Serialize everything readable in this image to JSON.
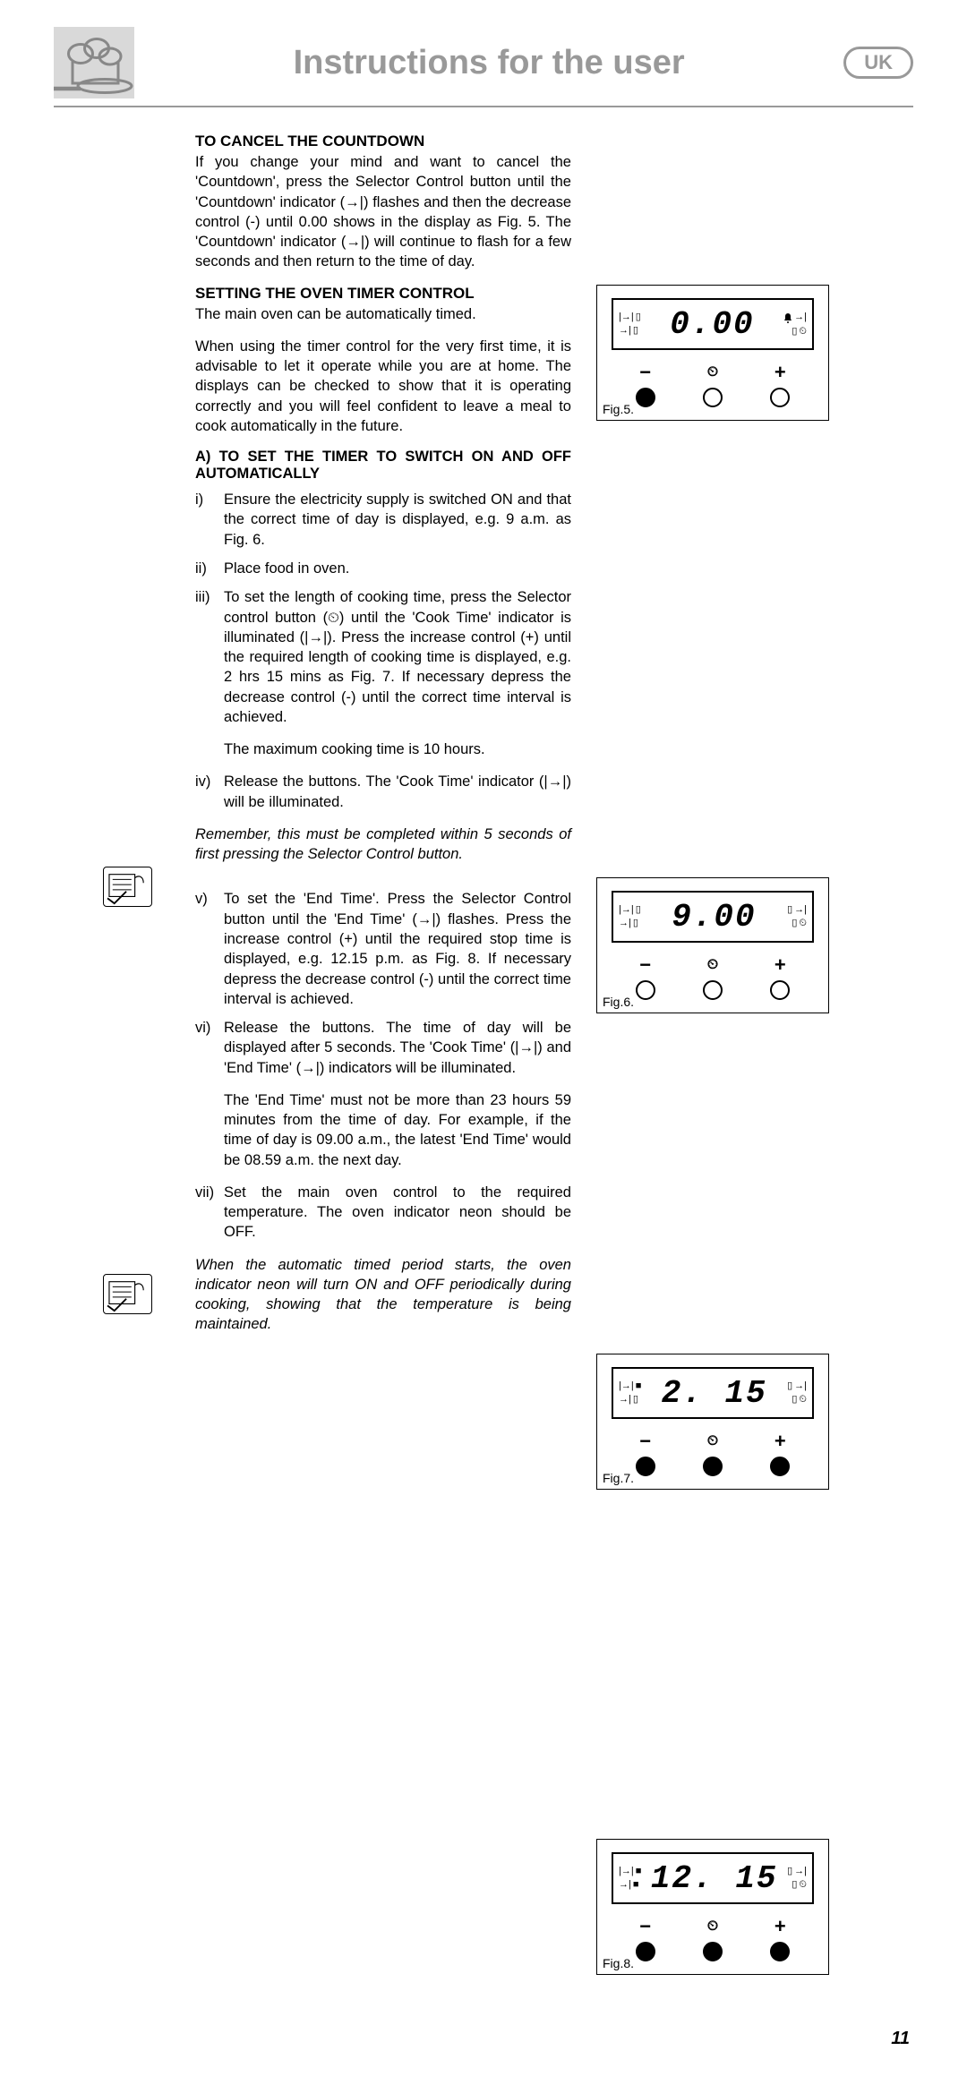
{
  "header": {
    "title": "Instructions for the user",
    "region_badge": "UK"
  },
  "sections": {
    "cancel": {
      "heading": "TO CANCEL THE COUNTDOWN",
      "body": "If you change your mind and want to cancel the 'Countdown', press the Selector Control button until the 'Countdown' indicator (→|) flashes and then the decrease control (-) until 0.00 shows in the display as Fig. 5. The 'Countdown' indicator (→|) will continue to flash for a few seconds and then return to the time of day."
    },
    "setting": {
      "heading": "SETTING THE OVEN TIMER CONTROL",
      "intro1": "The main oven can be automatically timed.",
      "intro2": "When using the timer control for the very first time, it is advisable to let it operate while you are at home. The displays can be checked to show that it is operating correctly and you will feel confident to leave a meal to cook automatically in the future."
    },
    "auto": {
      "heading": "A) TO SET THE TIMER TO SWITCH ON AND OFF AUTOMATICALLY",
      "steps": [
        {
          "n": "i)",
          "t": "Ensure the electricity supply is switched ON and that the correct time of day is displayed, e.g. 9 a.m. as Fig. 6."
        },
        {
          "n": "ii)",
          "t": "Place food in oven."
        },
        {
          "n": "iii)",
          "t": "To set the length of cooking time, press the Selector control button (⏲) until the 'Cook Time' indicator is illuminated (|→|). Press the increase control (+) until the required length of cooking time is displayed, e.g. 2 hrs 15 mins as Fig. 7. If necessary depress the decrease control (-) until the correct time interval is achieved."
        },
        {
          "n": "iv)",
          "t": "Release the buttons. The 'Cook Time' indicator (|→|) will be illuminated."
        }
      ],
      "max_note": "The maximum cooking time is 10 hours.",
      "remember": "Remember, this must be completed within 5 seconds of first pressing the Selector Control button.",
      "steps2": [
        {
          "n": "v)",
          "t": "To set the 'End Time'. Press the Selector Control button until the 'End Time' (→|) flashes. Press the increase control (+) until the required stop time is displayed, e.g. 12.15 p.m. as Fig. 8. If necessary depress the decrease control (-) until the correct time interval is achieved."
        },
        {
          "n": "vi)",
          "t": "Release the buttons. The time of day will be displayed after 5 seconds. The 'Cook Time' (|→|) and 'End Time' (→|) indicators will be illuminated."
        }
      ],
      "end_note": "The 'End Time' must not be more than 23 hours 59 minutes from the time of day. For example, if the time of day is 09.00 a.m., the latest 'End Time' would be 08.59 a.m. the next day.",
      "steps3": [
        {
          "n": "vii)",
          "t": "Set the main oven control to the required temperature. The oven indicator neon should be OFF."
        }
      ],
      "auto_note": "When the automatic timed period starts, the oven indicator neon will turn ON and OFF periodically during cooking, showing that the temperature is being maintained."
    }
  },
  "figures": {
    "fig5": {
      "caption": "Fig.5.",
      "display": "0.00",
      "bell_highlight": true,
      "buttons_filled": [
        false,
        false,
        false
      ],
      "minus_filled": true,
      "cook_ind": false,
      "end_ind": false
    },
    "fig6": {
      "caption": "Fig.6.",
      "display": "9.00",
      "bell_highlight": false,
      "buttons_filled": [
        false,
        false,
        false
      ],
      "minus_filled": false,
      "cook_ind": false,
      "end_ind": false
    },
    "fig7": {
      "caption": "Fig.7.",
      "display": "2. 15",
      "bell_highlight": false,
      "buttons_filled": [
        true,
        true,
        true
      ],
      "minus_filled": false,
      "cook_ind": true,
      "end_ind": false
    },
    "fig8": {
      "caption": "Fig.8.",
      "display": "12. 15",
      "bell_highlight": false,
      "buttons_filled": [
        true,
        true,
        true
      ],
      "minus_filled": false,
      "cook_ind": true,
      "end_ind": true
    }
  },
  "page_number": "11",
  "colors": {
    "header_grey": "#999999",
    "icon_bg": "#d9d9d9",
    "text": "#000000"
  }
}
